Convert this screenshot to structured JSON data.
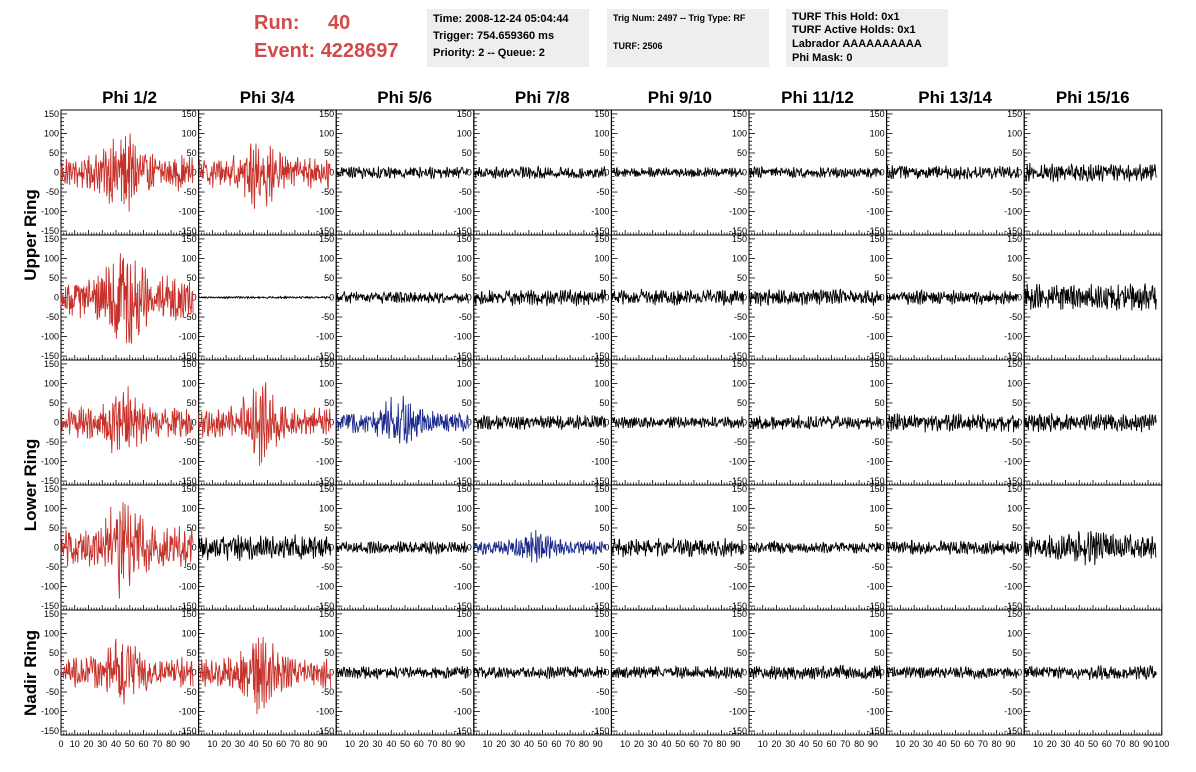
{
  "header": {
    "run_label": "Run:",
    "run_value": "40",
    "event_label": "Event:",
    "event_value": "4228697",
    "time_line": "Time: 2008-12-24 05:04:44",
    "trigger_line": "Trigger: 754.659360 ms",
    "priority_line": "Priority: 2 -- Queue: 2",
    "trig_num_line": "Trig Num: 2497 -- Trig Type: RF",
    "turf_line": "TURF: 2506",
    "turf_hold_line": "TURF This Hold: 0x1",
    "turf_active_line": "TURF Active Holds: 0x1",
    "labrador_line": "Labrador AAAAAAAAAA",
    "phi_mask_line": "Phi Mask: 0"
  },
  "chart_data": {
    "type": "line",
    "columns": [
      "Phi 1/2",
      "Phi 3/4",
      "Phi 5/6",
      "Phi 7/8",
      "Phi 9/10",
      "Phi 11/12",
      "Phi 13/14",
      "Phi 15/16"
    ],
    "rows": [
      "Upper Ring",
      "Lower Ring",
      "Nadir Ring"
    ],
    "x_range": [
      0,
      100
    ],
    "y_range": [
      -160,
      160
    ],
    "y_ticks": [
      -150,
      -100,
      -50,
      0,
      50,
      100,
      150
    ],
    "x_ticks": [
      0,
      10,
      20,
      30,
      40,
      50,
      60,
      70,
      80,
      90,
      100
    ],
    "trace_x_range": [
      0,
      96
    ],
    "colors": {
      "triggered": "#c8302a",
      "highlight": "#1c2b8c",
      "normal": "#000000"
    },
    "panels": [
      {
        "row": 0,
        "col": 0,
        "amplitude": 35,
        "burst": 50,
        "color": "triggered"
      },
      {
        "row": 0,
        "col": 1,
        "amplitude": 30,
        "burst": 45,
        "color": "triggered"
      },
      {
        "row": 0,
        "col": 2,
        "amplitude": 12,
        "burst": 0,
        "color": "normal"
      },
      {
        "row": 0,
        "col": 3,
        "amplitude": 12,
        "burst": 0,
        "color": "normal"
      },
      {
        "row": 0,
        "col": 4,
        "amplitude": 10,
        "burst": 0,
        "color": "normal"
      },
      {
        "row": 0,
        "col": 5,
        "amplitude": 11,
        "burst": 0,
        "color": "normal"
      },
      {
        "row": 0,
        "col": 6,
        "amplitude": 14,
        "burst": 0,
        "color": "normal"
      },
      {
        "row": 0,
        "col": 7,
        "amplitude": 18,
        "burst": 0,
        "color": "normal"
      },
      {
        "row": 1,
        "col": 0,
        "amplitude": 45,
        "burst": 70,
        "color": "triggered"
      },
      {
        "row": 1,
        "col": 1,
        "amplitude": 2,
        "burst": 0,
        "color": "normal"
      },
      {
        "row": 1,
        "col": 2,
        "amplitude": 12,
        "burst": 0,
        "color": "normal"
      },
      {
        "row": 1,
        "col": 3,
        "amplitude": 16,
        "burst": 0,
        "color": "normal"
      },
      {
        "row": 1,
        "col": 4,
        "amplitude": 16,
        "burst": 0,
        "color": "normal"
      },
      {
        "row": 1,
        "col": 5,
        "amplitude": 16,
        "burst": 0,
        "color": "normal"
      },
      {
        "row": 1,
        "col": 6,
        "amplitude": 14,
        "burst": 0,
        "color": "normal"
      },
      {
        "row": 1,
        "col": 7,
        "amplitude": 26,
        "burst": 0,
        "color": "normal"
      },
      {
        "row": 2,
        "col": 0,
        "amplitude": 30,
        "burst": 45,
        "color": "triggered"
      },
      {
        "row": 2,
        "col": 1,
        "amplitude": 30,
        "burst": 55,
        "color": "triggered"
      },
      {
        "row": 2,
        "col": 2,
        "amplitude": 22,
        "burst": 35,
        "color": "highlight"
      },
      {
        "row": 2,
        "col": 3,
        "amplitude": 14,
        "burst": 0,
        "color": "normal"
      },
      {
        "row": 2,
        "col": 4,
        "amplitude": 12,
        "burst": 0,
        "color": "normal"
      },
      {
        "row": 2,
        "col": 5,
        "amplitude": 14,
        "burst": 0,
        "color": "normal"
      },
      {
        "row": 2,
        "col": 6,
        "amplitude": 18,
        "burst": 0,
        "color": "normal"
      },
      {
        "row": 2,
        "col": 7,
        "amplitude": 18,
        "burst": 0,
        "color": "normal"
      },
      {
        "row": 3,
        "col": 0,
        "amplitude": 40,
        "burst": 60,
        "color": "triggered"
      },
      {
        "row": 3,
        "col": 1,
        "amplitude": 25,
        "burst": 0,
        "color": "normal"
      },
      {
        "row": 3,
        "col": 2,
        "amplitude": 12,
        "burst": 0,
        "color": "normal"
      },
      {
        "row": 3,
        "col": 3,
        "amplitude": 14,
        "burst": 20,
        "color": "highlight"
      },
      {
        "row": 3,
        "col": 4,
        "amplitude": 18,
        "burst": 0,
        "color": "normal"
      },
      {
        "row": 3,
        "col": 5,
        "amplitude": 12,
        "burst": 0,
        "color": "normal"
      },
      {
        "row": 3,
        "col": 6,
        "amplitude": 14,
        "burst": 0,
        "color": "normal"
      },
      {
        "row": 3,
        "col": 7,
        "amplitude": 25,
        "burst": 10,
        "color": "normal"
      },
      {
        "row": 4,
        "col": 0,
        "amplitude": 30,
        "burst": 45,
        "color": "triggered"
      },
      {
        "row": 4,
        "col": 1,
        "amplitude": 30,
        "burst": 55,
        "color": "triggered"
      },
      {
        "row": 4,
        "col": 2,
        "amplitude": 12,
        "burst": 0,
        "color": "normal"
      },
      {
        "row": 4,
        "col": 3,
        "amplitude": 12,
        "burst": 0,
        "color": "normal"
      },
      {
        "row": 4,
        "col": 4,
        "amplitude": 12,
        "burst": 0,
        "color": "normal"
      },
      {
        "row": 4,
        "col": 5,
        "amplitude": 14,
        "burst": 0,
        "color": "normal"
      },
      {
        "row": 4,
        "col": 6,
        "amplitude": 12,
        "burst": 0,
        "color": "normal"
      },
      {
        "row": 4,
        "col": 7,
        "amplitude": 14,
        "burst": 0,
        "color": "normal"
      }
    ]
  }
}
